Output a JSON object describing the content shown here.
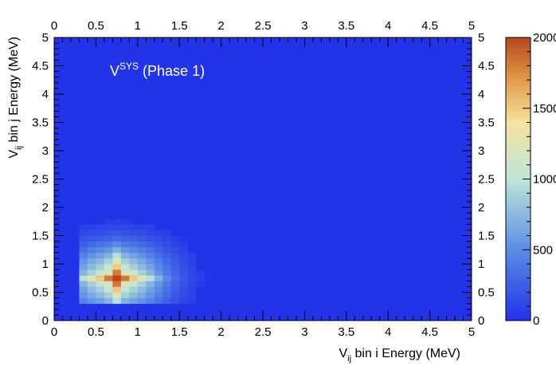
{
  "chart_data": {
    "type": "heatmap",
    "annotation": {
      "main": "V",
      "sup": "SYS",
      "rest": " (Phase 1)"
    },
    "xlabel": {
      "pre": "V",
      "sub": "ij",
      "post": " bin i Energy (MeV)"
    },
    "ylabel": {
      "pre": "V",
      "sub": "ij",
      "post": " bin j Energy (MeV)"
    },
    "xlim": [
      0,
      5
    ],
    "ylim": [
      0,
      5
    ],
    "x_ticks": [
      "0",
      "0.5",
      "1",
      "1.5",
      "2",
      "2.5",
      "3",
      "3.5",
      "4",
      "4.5",
      "5"
    ],
    "y_ticks": [
      "0",
      "0.5",
      "1",
      "1.5",
      "2",
      "2.5",
      "3",
      "3.5",
      "4",
      "4.5",
      "5"
    ],
    "colorbar": {
      "min": 0,
      "max": 2000,
      "ticks": [
        "0",
        "500",
        "1000",
        "1500",
        "2000"
      ]
    },
    "bins": {
      "n": 50,
      "width": 0.1
    },
    "peak": {
      "x": 0.75,
      "y": 0.75,
      "value": 2000
    },
    "threshold": {
      "x_min": 0.3,
      "y_min": 0.3
    },
    "colors": {
      "low": "#2233e8",
      "mid": "#bfe5d8",
      "yellow": "#f5e2a0",
      "high": "#b84620"
    }
  }
}
